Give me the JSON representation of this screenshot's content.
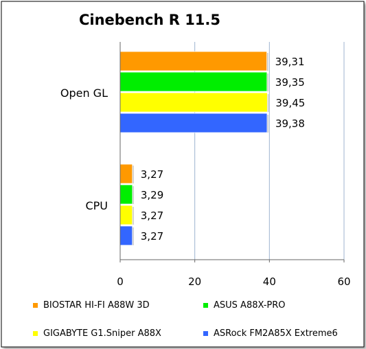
{
  "chart_data": {
    "type": "bar",
    "orientation": "horizontal",
    "title": "Cinebench R 11.5",
    "xlabel": "",
    "ylabel": "",
    "xlim": [
      0,
      60
    ],
    "x_ticks": [
      "0",
      "20",
      "40",
      "60"
    ],
    "grid": true,
    "legend_position": "bottom",
    "categories": [
      "Open GL",
      "CPU"
    ],
    "series": [
      {
        "name": "BIOSTAR HI-FI A88W 3D",
        "color": "#ff9900",
        "values": [
          39.31,
          3.27
        ],
        "labels": [
          "39,31",
          "3,27"
        ]
      },
      {
        "name": "ASUS A88X-PRO",
        "color": "#00ee00",
        "values": [
          39.35,
          3.29
        ],
        "labels": [
          "39,35",
          "3,29"
        ]
      },
      {
        "name": "GIGABYTE G1.Sniper A88X",
        "color": "#ffff00",
        "values": [
          39.45,
          3.27
        ],
        "labels": [
          "39,45",
          "3,27"
        ]
      },
      {
        "name": "ASRock FM2A85X Extreme6",
        "color": "#3366ff",
        "values": [
          39.38,
          3.27
        ],
        "labels": [
          "39,38",
          "3,27"
        ]
      }
    ]
  }
}
